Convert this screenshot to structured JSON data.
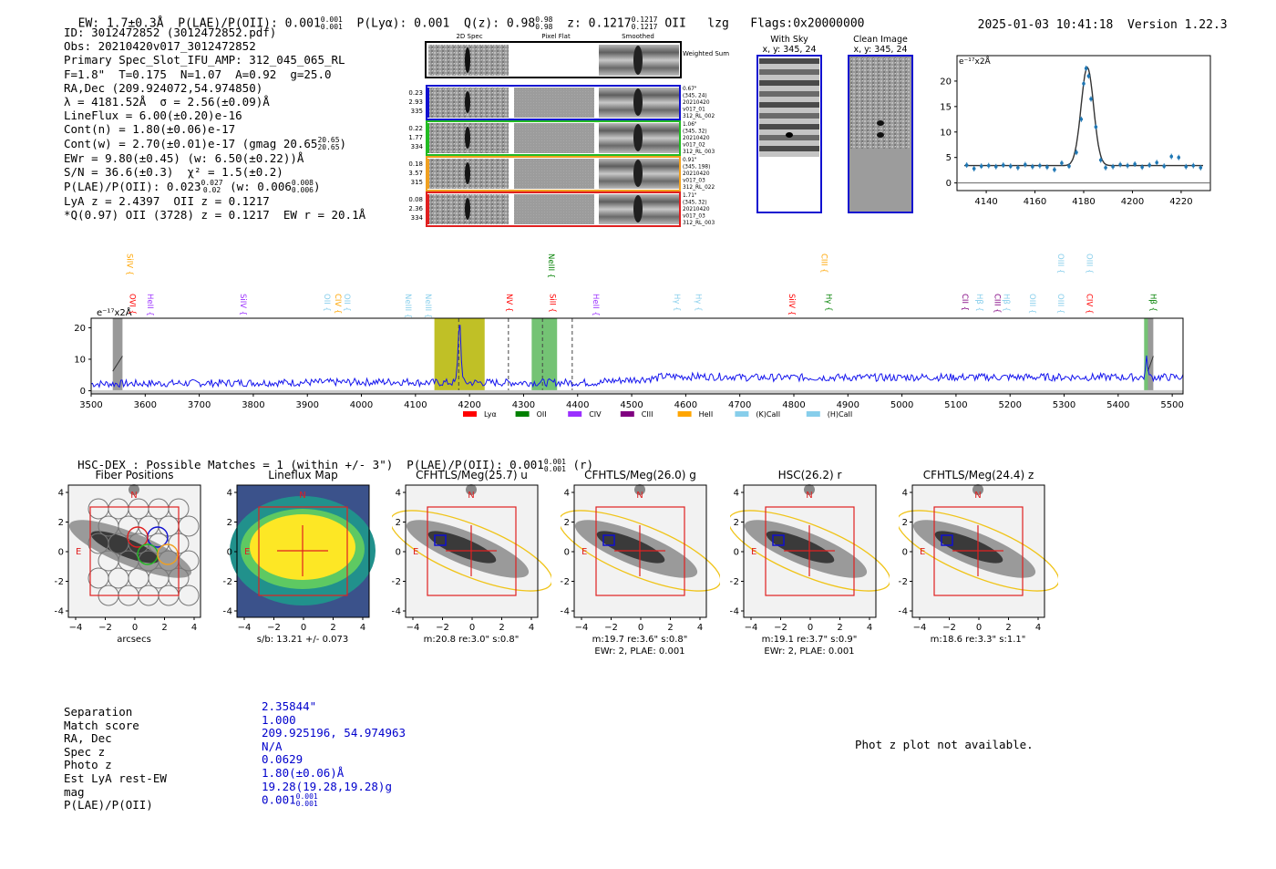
{
  "header": {
    "ew": "EW: 1.7±0.3Å",
    "plae_label": "P(LAE)/P(OII): 0.001",
    "plae_sup": "0.001",
    "plae_sub": "0.001",
    "plya": "P(Lyα): 0.001",
    "qz_label": "Q(z): 0.98",
    "qz_sup": "0.98",
    "qz_sub": "0.98",
    "z_label": "z: 0.1217",
    "z_sup": "0.1217",
    "z_sub": "0.1217",
    "z_line": "OII",
    "user": "lzg",
    "flags": "Flags:0x20000000",
    "timestamp": "2025-01-03 10:41:18",
    "version": "Version 1.22.3"
  },
  "info": {
    "id": "ID: 3012472852 (3012472852.pdf)",
    "obs": "Obs: 20210420v017_3012472852",
    "primary": "Primary Spec_Slot_IFU_AMP: 312_045_065_RL",
    "fwhm": "F=1.8\"  T=0.175  N=1.07  A=0.92  g=25.0",
    "radec": "RA,Dec (209.924072,54.974850)",
    "lambda": "λ = 4181.52Å  σ = 2.56(±0.09)Å",
    "lineflux": "LineFlux = 6.00(±0.20)e-16",
    "contn": "Cont(n) = 1.80(±0.06)e-17",
    "contw": "Cont(w) = 2.70(±0.01)e-17 (gmag 20.65",
    "contw_sup": "20.65",
    "contw_sub": "20.65",
    "ewr": "EWr = 9.80(±0.45) (w: 6.50(±0.22))Å",
    "sn": "S/N = 36.6(±0.3)  χ² = 1.5(±0.2)",
    "plae": "P(LAE)/P(OII): 0.023",
    "plae_sup": "0.027",
    "plae_sub": "0.02",
    "plae_w": "(w: 0.006",
    "plae_w_sup": "0.008",
    "plae_w_sub": "0.006",
    "lya": "LyA z = 2.4397  OII z = 0.1217",
    "q": "*Q(0.97) OII (3728) z = 0.1217  EW r = 20.1Å"
  },
  "cutouts": {
    "col_titles": [
      "2D Spec",
      "Pixel Flat",
      "Smoothed"
    ],
    "weighted_label": "Weighted Sum",
    "rows": [
      {
        "left": [
          "0.23",
          "2.93",
          "335"
        ],
        "right": [
          "0.67\"",
          "(345, 24)",
          "20210420",
          "v017_01",
          "312_RL_002"
        ],
        "color": "#1010d0"
      },
      {
        "left": [
          "0.22",
          "1.77",
          "334"
        ],
        "right": [
          "1.06\"",
          "(345, 32)",
          "20210420",
          "v017_02",
          "312_RL_003"
        ],
        "color": "#22bb22"
      },
      {
        "left": [
          "0.18",
          "3.57",
          "315"
        ],
        "right": [
          "0.91\"",
          "(345, 198)",
          "20210420",
          "v017_03",
          "312_RL_022"
        ],
        "color": "#f0a020"
      },
      {
        "left": [
          "0.08",
          "2.36",
          "334"
        ],
        "right": [
          "1.71\"",
          "(345, 32)",
          "20210420",
          "v017_03",
          "312_RL_003"
        ],
        "color": "#e02020"
      }
    ],
    "with_sky_title": "With Sky",
    "with_sky_xy": "x, y: 345, 24",
    "clean_title": "Clean Image",
    "clean_xy": "x, y: 345, 24"
  },
  "chart_data": [
    {
      "type": "line",
      "name": "line-fit-zoom",
      "ylabel": "e⁻¹⁷x2Å",
      "xlim": [
        4128,
        4232
      ],
      "ylim": [
        -1.5,
        25
      ],
      "xticks": [
        4140,
        4160,
        4180,
        4200,
        4220
      ],
      "yticks": [
        0,
        5,
        10,
        15,
        20
      ],
      "data_x": [
        4132,
        4135,
        4138,
        4141,
        4144,
        4147,
        4150,
        4153,
        4156,
        4159,
        4162,
        4165,
        4168,
        4171,
        4174,
        4177,
        4179,
        4180,
        4181,
        4182,
        4183,
        4185,
        4187,
        4189,
        4192,
        4195,
        4198,
        4201,
        4204,
        4207,
        4210,
        4213,
        4216,
        4219,
        4222,
        4225,
        4228
      ],
      "data_y": [
        3.5,
        2.8,
        3.3,
        3.4,
        3.2,
        3.5,
        3.3,
        3.0,
        3.6,
        3.2,
        3.4,
        3.1,
        2.6,
        3.9,
        3.3,
        6.0,
        12.5,
        19.5,
        22.5,
        21.0,
        16.5,
        11.0,
        4.5,
        3.0,
        3.2,
        3.6,
        3.4,
        3.7,
        3.1,
        3.5,
        4.0,
        3.3,
        5.2,
        5.0,
        3.2,
        3.4,
        3.0
      ],
      "fit_center": 4181.5,
      "fit_sigma": 2.56,
      "fit_peak": 19.3,
      "fit_cont": 3.4
    },
    {
      "type": "line",
      "name": "full-spectrum",
      "ylabel": "e⁻¹⁷x2Å",
      "xlim": [
        3500,
        5520
      ],
      "ylim": [
        -1,
        23
      ],
      "xticks": [
        3500,
        3600,
        3700,
        3800,
        3900,
        4000,
        4100,
        4200,
        4300,
        4400,
        4500,
        4600,
        4700,
        4800,
        4900,
        5000,
        5100,
        5200,
        5300,
        5400,
        5500
      ],
      "yticks": [
        0,
        10,
        20
      ],
      "highlight_regions": [
        {
          "from": 4135,
          "to": 4228,
          "color": "#b5b500"
        },
        {
          "from": 4315,
          "to": 4362,
          "color": "#5cb85c"
        },
        {
          "from": 5448,
          "to": 5458,
          "color": "#5cb85c"
        }
      ],
      "gray_regions": [
        {
          "from": 3540,
          "to": 3558
        },
        {
          "from": 5455,
          "to": 5465
        }
      ],
      "dashed_lines": [
        4180,
        4272,
        4335,
        4390
      ],
      "legend": [
        {
          "label": "Lyα",
          "color": "#ff0000"
        },
        {
          "label": "OII",
          "color": "#008000"
        },
        {
          "label": "CIV",
          "color": "#9b30ff"
        },
        {
          "label": "CIII",
          "color": "#800080"
        },
        {
          "label": "HeII",
          "color": "#ffa500"
        },
        {
          "label": "(K)CaII",
          "color": "#87ceeb"
        },
        {
          "label": "(H)CaII",
          "color": "#87ceeb"
        }
      ],
      "line_markers": [
        {
          "label": "SiIV",
          "x": 3560,
          "row": 0,
          "color": "#ffa500"
        },
        {
          "label": "OVI",
          "x": 3565,
          "row": 1,
          "color": "#ff0000"
        },
        {
          "label": "HeII",
          "x": 3598,
          "row": 1,
          "color": "#9b30ff"
        },
        {
          "label": "SiIV",
          "x": 3770,
          "row": 1,
          "color": "#9b30ff"
        },
        {
          "label": "OII",
          "x": 3925,
          "row": 1,
          "color": "#87ceeb"
        },
        {
          "label": "CIV",
          "x": 3945,
          "row": 1,
          "color": "#ffa500"
        },
        {
          "label": "OII",
          "x": 3962,
          "row": 1,
          "color": "#87ceeb"
        },
        {
          "label": "NeIII",
          "x": 4075,
          "row": 1,
          "color": "#87ceeb"
        },
        {
          "label": "NeIII",
          "x": 4112,
          "row": 1,
          "color": "#87ceeb"
        },
        {
          "label": "NV",
          "x": 4262,
          "row": 1,
          "color": "#ff0000"
        },
        {
          "label": "NeIII",
          "x": 4340,
          "row": 0,
          "color": "#008000"
        },
        {
          "label": "SiII",
          "x": 4342,
          "row": 1,
          "color": "#ff0000"
        },
        {
          "label": "HeII",
          "x": 4422,
          "row": 1,
          "color": "#9b30ff"
        },
        {
          "label": "Hγ",
          "x": 4572,
          "row": 1,
          "color": "#87ceeb"
        },
        {
          "label": "Hγ",
          "x": 4612,
          "row": 1,
          "color": "#87ceeb"
        },
        {
          "label": "SiIV",
          "x": 4785,
          "row": 1,
          "color": "#ff0000"
        },
        {
          "label": "CIII",
          "x": 4845,
          "row": 0,
          "color": "#ffa500"
        },
        {
          "label": "Hγ",
          "x": 4853,
          "row": 1,
          "color": "#008000"
        },
        {
          "label": "CII",
          "x": 5105,
          "row": 1,
          "color": "#800080"
        },
        {
          "label": "Hβ",
          "x": 5132,
          "row": 1,
          "color": "#87ceeb"
        },
        {
          "label": "CIII",
          "x": 5165,
          "row": 1,
          "color": "#800080"
        },
        {
          "label": "Hβ",
          "x": 5182,
          "row": 1,
          "color": "#87ceeb"
        },
        {
          "label": "OIII",
          "x": 5230,
          "row": 1,
          "color": "#87ceeb"
        },
        {
          "label": "OIII",
          "x": 5282,
          "row": 0,
          "color": "#87ceeb"
        },
        {
          "label": "OIII",
          "x": 5282,
          "row": 1,
          "color": "#87ceeb"
        },
        {
          "label": "OIII",
          "x": 5335,
          "row": 0,
          "color": "#87ceeb"
        },
        {
          "label": "CIV",
          "x": 5335,
          "row": 1,
          "color": "#ff0000"
        },
        {
          "label": "Hβ",
          "x": 5453,
          "row": 1,
          "color": "#008000"
        }
      ]
    }
  ],
  "hsc": {
    "title": "HSC-DEX : Possible Matches = 1 (within +/- 3\")  P(LAE)/P(OII): 0.001",
    "sup": "0.001",
    "sub": "0.001",
    "band": "(r)",
    "panels": [
      {
        "title": "Fiber Positions",
        "caption1": "arcsecs",
        "caption2": ""
      },
      {
        "title": "Lineflux Map",
        "caption1": "s/b: 13.21 +/- 0.073",
        "caption2": ""
      },
      {
        "title": "CFHTLS/Meg(25.7) u",
        "caption1": "m:20.8  re:3.0\"  s:0.8\"",
        "caption2": ""
      },
      {
        "title": "CFHTLS/Meg(26.0) g",
        "caption1": "m:19.7  re:3.6\"  s:0.8\"",
        "caption2": "EWr: 2, PLAE: 0.001"
      },
      {
        "title": "HSC(26.2) r",
        "caption1": "m:19.1  re:3.7\"  s:0.9\"",
        "caption2": "EWr: 2, PLAE: 0.001"
      },
      {
        "title": "CFHTLS/Meg(24.4) z",
        "caption1": "m:18.6  re:3.3\"  s:1.1\"",
        "caption2": ""
      }
    ],
    "axis_ticks": [
      "−4",
      "−2",
      "0",
      "2",
      "4"
    ],
    "north": "N",
    "east": "E"
  },
  "stats": {
    "keys": [
      "Separation",
      "Match score",
      "RA, Dec",
      "Spec z",
      "Photo z",
      "Est LyA rest-EW",
      "mag",
      "P(LAE)/P(OII)"
    ],
    "values": [
      "2.35844\"",
      "1.000",
      "209.925196, 54.974963",
      "N/A",
      "0.0629",
      "1.80(±0.06)Å",
      "19.28(19.28,19.28)g",
      "0.001"
    ],
    "plae_sup": "0.001",
    "plae_sub": "0.001"
  },
  "photz_note": "Phot z plot not available."
}
